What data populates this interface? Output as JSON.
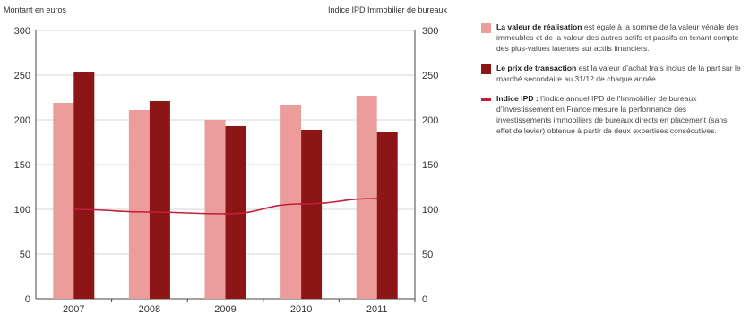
{
  "chart_data": {
    "type": "bar",
    "categories": [
      "2007",
      "2008",
      "2009",
      "2010",
      "2011"
    ],
    "series": [
      {
        "name": "La valeur de réalisation",
        "kind": "bar",
        "color": "#ec9d9b",
        "values": [
          219,
          211,
          200,
          217,
          227
        ]
      },
      {
        "name": "Le prix de transaction",
        "kind": "bar",
        "color": "#8c1616",
        "values": [
          253,
          221,
          193,
          189,
          187
        ]
      },
      {
        "name": "Indice IPD",
        "kind": "line",
        "color": "#c41e3a",
        "values": [
          100,
          97,
          95,
          106,
          112
        ]
      }
    ],
    "ylabel_left": "Montant en euros",
    "ylabel_right": "Indice IPD Immobilier de bureaux",
    "ylim": [
      0,
      300
    ],
    "yticks": [
      0,
      50,
      100,
      150,
      200,
      250,
      300
    ],
    "grid": true,
    "legend_position": "right"
  },
  "legend": [
    {
      "label": "La valeur de réalisation",
      "text": " est égale à la somme de la valeur vénale des immeubles et de la valeur des autres actifs et passifs en tenant compte des plus-values latentes sur actifs financiers.",
      "color": "#ec9d9b",
      "shape": "box"
    },
    {
      "label": "Le prix de transaction",
      "text": " est la valeur d’achat frais inclus de la part sur le marché secondaire au 31/12 de chaque année.",
      "color": "#8c1616",
      "shape": "box"
    },
    {
      "label": "Indice IPD :",
      "text": " l’indice annuel IPD de l’Immobilier de bureaux d’Investissement en France mesure la performance des investissements immobiliers de bureaux directs en placement (sans effet de levier) obtenue à partir de deux expertises consécutives.",
      "color": "#c41e3a",
      "shape": "line"
    }
  ]
}
